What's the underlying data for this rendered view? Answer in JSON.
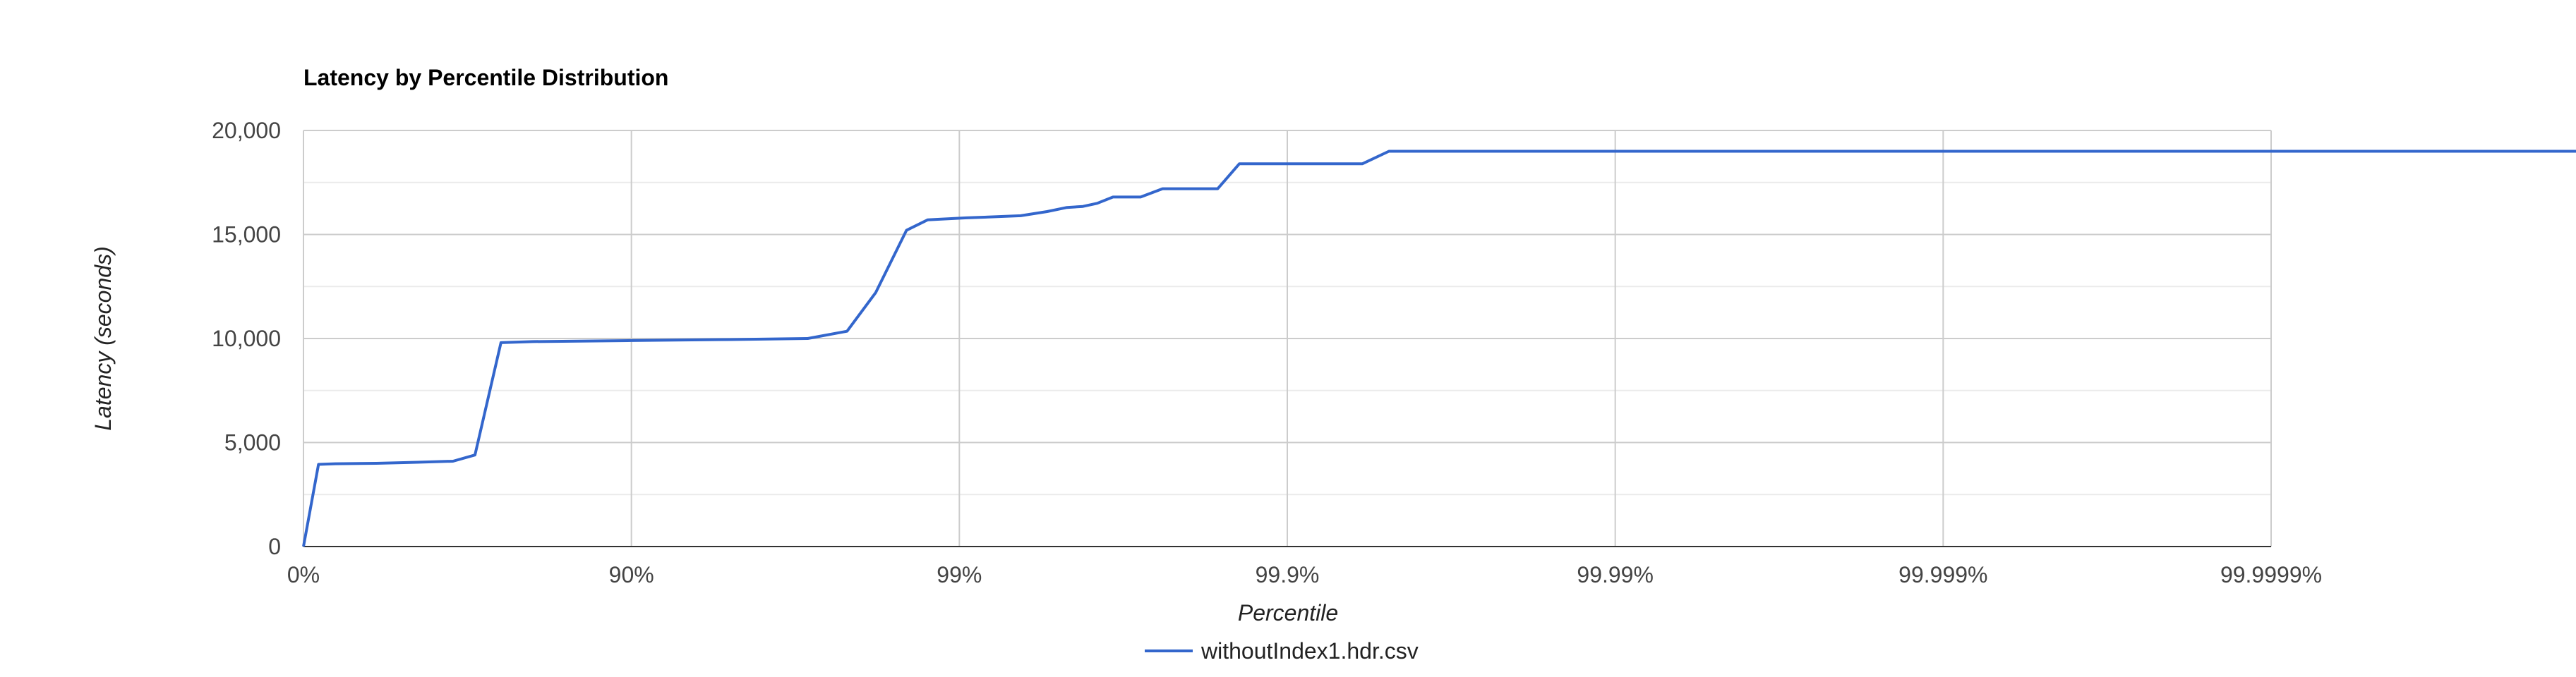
{
  "chart_data": {
    "type": "line",
    "title": "Latency by Percentile Distribution",
    "xlabel": "Percentile",
    "ylabel": "Latency (seconds)",
    "x_scale": "log-percentile",
    "x_tick_labels": [
      "0%",
      "90%",
      "99%",
      "99.9%",
      "99.99%",
      "99.999%",
      "99.9999%"
    ],
    "y_tick_labels": [
      "0",
      "5,000",
      "10,000",
      "15,000",
      "20,000"
    ],
    "y_ticks": [
      0,
      5000,
      10000,
      15000,
      20000
    ],
    "ylim": [
      0,
      20000
    ],
    "grid": true,
    "legend_position": "bottom",
    "series": [
      {
        "name": "withoutIndex1.hdr.csv",
        "color": "#3366cc",
        "points": [
          [
            0,
            0
          ],
          [
            0.1,
            3950
          ],
          [
            0.2,
            3980
          ],
          [
            0.4,
            4000
          ],
          [
            0.55,
            4050
          ],
          [
            0.65,
            4100
          ],
          [
            0.7,
            4400
          ],
          [
            0.75,
            9800
          ],
          [
            0.8,
            9850
          ],
          [
            0.9,
            9900
          ],
          [
            0.95,
            9950
          ],
          [
            0.971,
            10000
          ],
          [
            0.978,
            10350
          ],
          [
            0.982,
            12200
          ],
          [
            0.9855,
            15200
          ],
          [
            0.9875,
            15700
          ],
          [
            0.9905,
            15800
          ],
          [
            0.9922,
            15850
          ],
          [
            0.9935,
            15900
          ],
          [
            0.9946,
            16100
          ],
          [
            0.9953,
            16300
          ],
          [
            0.9958,
            16350
          ],
          [
            0.9962,
            16500
          ],
          [
            0.9966,
            16800
          ],
          [
            0.9972,
            16800
          ],
          [
            0.9976,
            17200
          ],
          [
            0.99837,
            17200
          ],
          [
            0.9986,
            18400
          ],
          [
            0.99941,
            18400
          ],
          [
            0.99951,
            19000
          ],
          [
            0.99999999,
            19000
          ]
        ]
      }
    ]
  }
}
